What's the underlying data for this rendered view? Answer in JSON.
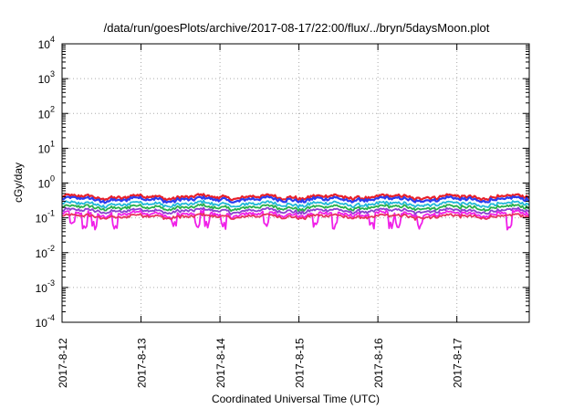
{
  "chart_data": {
    "type": "line",
    "title": "/data/run/goesPlots/archive/2017-08-17/22:00/flux/../bryn/5daysMoon.plot",
    "xlabel": "Coordinated Universal Time (UTC)",
    "ylabel": "cGy/day",
    "y_scale": "log",
    "ylim": [
      0.0001,
      10000
    ],
    "y_ticks": [
      {
        "base": "10",
        "exp": "4"
      },
      {
        "base": "10",
        "exp": "3"
      },
      {
        "base": "10",
        "exp": "2"
      },
      {
        "base": "10",
        "exp": "1"
      },
      {
        "base": "10",
        "exp": "0"
      },
      {
        "base": "10",
        "exp": "-1"
      },
      {
        "base": "10",
        "exp": "-2"
      },
      {
        "base": "10",
        "exp": "-3"
      },
      {
        "base": "10",
        "exp": "-4"
      }
    ],
    "x_range": [
      "2017-08-12T00:00",
      "2017-08-17T22:00"
    ],
    "x_ticks": [
      "2017-8-12",
      "2017-8-13",
      "2017-8-14",
      "2017-8-15",
      "2017-8-16",
      "2017-8-17"
    ],
    "grid": true,
    "series": [
      {
        "color": "#e8202a",
        "base": 0.4,
        "amp": 0.08
      },
      {
        "color": "#2a3cf0",
        "base": 0.34,
        "amp": 0.07
      },
      {
        "color": "#22b8d8",
        "base": 0.25,
        "amp": 0.05
      },
      {
        "color": "#27b04a",
        "base": 0.2,
        "amp": 0.04
      },
      {
        "color": "#8a3fd0",
        "base": 0.16,
        "amp": 0.03
      },
      {
        "color": "#f020e8",
        "base": 0.13,
        "amp": 0.03,
        "dips": true
      },
      {
        "color": "#e83060",
        "base": 0.11,
        "amp": 0.02
      }
    ],
    "dip_dates": [
      "2017-08-12T03:00",
      "2017-08-12T07:00",
      "2017-08-12T10:00",
      "2017-08-12T16:00",
      "2017-08-13T10:00",
      "2017-08-13T17:00",
      "2017-08-13T20:00",
      "2017-08-14T01:00",
      "2017-08-14T14:00",
      "2017-08-15T05:00",
      "2017-08-15T11:00",
      "2017-08-15T22:00",
      "2017-08-16T04:00",
      "2017-08-16T06:00",
      "2017-08-16T13:00",
      "2017-08-17T16:00"
    ]
  }
}
